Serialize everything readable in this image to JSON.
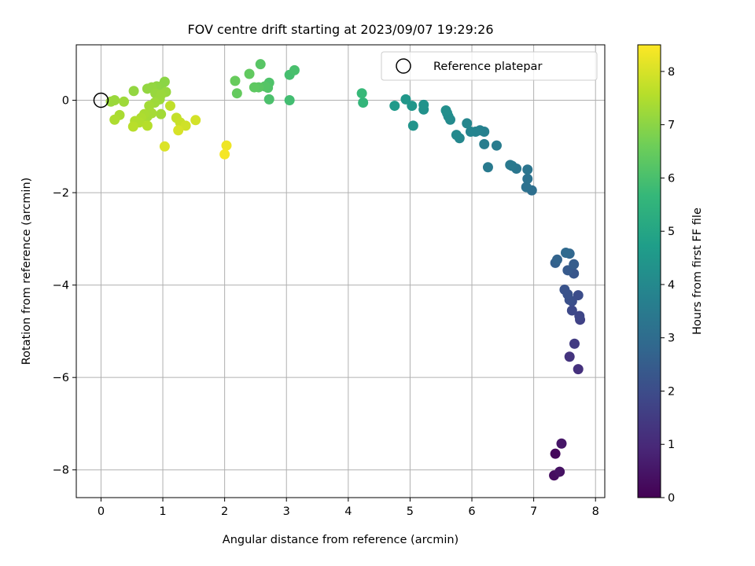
{
  "chart_data": {
    "type": "scatter",
    "title": "FOV centre drift starting at 2023/09/07 19:29:26",
    "xlabel": "Angular distance from reference (arcmin)",
    "ylabel": "Rotation from reference (arcmin)",
    "xlim": [
      -0.4,
      8.15
    ],
    "ylim": [
      -8.6,
      1.2
    ],
    "x_ticks": [
      0,
      1,
      2,
      3,
      4,
      5,
      6,
      7,
      8
    ],
    "x_tick_labels": [
      "0",
      "1",
      "2",
      "3",
      "4",
      "5",
      "6",
      "7",
      "8"
    ],
    "y_ticks": [
      -8,
      -6,
      -4,
      -2,
      0
    ],
    "y_tick_labels": [
      "−8",
      "−6",
      "−4",
      "−2",
      "0"
    ],
    "grid": true,
    "legend": {
      "placement": "top-right",
      "entries": [
        "Reference platepar"
      ]
    },
    "reference_marker": {
      "x": 0,
      "y": 0
    },
    "colorbar": {
      "label": "Hours from first FF file",
      "range": [
        0,
        8.5
      ],
      "ticks": [
        0,
        1,
        2,
        3,
        4,
        5,
        6,
        7,
        8
      ],
      "tick_labels": [
        "0",
        "1",
        "2",
        "3",
        "4",
        "5",
        "6",
        "7",
        "8"
      ],
      "colormap": [
        "#440154",
        "#482878",
        "#3e4989",
        "#31688e",
        "#26828e",
        "#1f9e89",
        "#35b779",
        "#6ece58",
        "#b5de2b",
        "#fde725"
      ]
    },
    "series": [
      {
        "points": [
          [
            7.35,
            -7.65,
            0.2
          ],
          [
            7.33,
            -8.12,
            0.3
          ],
          [
            7.42,
            -8.04,
            0.4
          ],
          [
            7.45,
            -7.43,
            0.5
          ],
          [
            7.72,
            -5.82,
            1.2
          ],
          [
            7.58,
            -5.55,
            1.3
          ],
          [
            7.66,
            -5.27,
            1.5
          ],
          [
            7.75,
            -4.75,
            1.7
          ],
          [
            7.74,
            -4.67,
            1.8
          ],
          [
            7.62,
            -4.55,
            1.9
          ],
          [
            7.72,
            -4.22,
            2.0
          ],
          [
            7.62,
            -4.35,
            2.05
          ],
          [
            7.58,
            -4.32,
            2.1
          ],
          [
            7.55,
            -4.2,
            2.15
          ],
          [
            7.5,
            -4.1,
            2.2
          ],
          [
            7.65,
            -3.75,
            2.3
          ],
          [
            7.55,
            -3.68,
            2.4
          ],
          [
            7.65,
            -3.55,
            2.5
          ],
          [
            7.35,
            -3.52,
            2.6
          ],
          [
            7.38,
            -3.45,
            2.7
          ],
          [
            7.58,
            -3.32,
            2.8
          ],
          [
            7.52,
            -3.3,
            2.9
          ],
          [
            6.97,
            -1.95,
            3.1
          ],
          [
            6.88,
            -1.88,
            3.15
          ],
          [
            6.9,
            -1.7,
            3.2
          ],
          [
            6.9,
            -1.5,
            3.3
          ],
          [
            6.72,
            -1.48,
            3.35
          ],
          [
            6.65,
            -1.42,
            3.4
          ],
          [
            6.62,
            -1.4,
            3.45
          ],
          [
            6.26,
            -1.45,
            3.5
          ],
          [
            6.4,
            -0.98,
            3.55
          ],
          [
            6.2,
            -0.95,
            3.6
          ],
          [
            6.2,
            -0.68,
            3.7
          ],
          [
            6.13,
            -0.65,
            3.75
          ],
          [
            6.06,
            -0.68,
            3.8
          ],
          [
            5.98,
            -0.68,
            3.85
          ],
          [
            5.92,
            -0.5,
            3.9
          ],
          [
            5.8,
            -0.82,
            3.95
          ],
          [
            5.75,
            -0.75,
            4.0
          ],
          [
            5.65,
            -0.42,
            4.05
          ],
          [
            5.62,
            -0.35,
            4.1
          ],
          [
            5.6,
            -0.28,
            4.15
          ],
          [
            5.58,
            -0.22,
            4.2
          ],
          [
            5.22,
            -0.2,
            4.3
          ],
          [
            5.22,
            -0.1,
            4.35
          ],
          [
            5.05,
            -0.55,
            4.4
          ],
          [
            5.03,
            -0.12,
            4.45
          ],
          [
            4.93,
            0.02,
            4.5
          ],
          [
            4.75,
            -0.12,
            4.6
          ],
          [
            4.24,
            -0.05,
            5.6
          ],
          [
            4.22,
            0.15,
            5.7
          ],
          [
            3.05,
            0.0,
            5.9
          ],
          [
            3.05,
            0.55,
            5.95
          ],
          [
            3.13,
            0.65,
            6.0
          ],
          [
            2.72,
            0.02,
            6.05
          ],
          [
            2.72,
            0.38,
            6.1
          ],
          [
            2.7,
            0.27,
            6.15
          ],
          [
            2.65,
            0.3,
            6.2
          ],
          [
            2.58,
            0.78,
            6.25
          ],
          [
            2.55,
            0.28,
            6.3
          ],
          [
            2.48,
            0.28,
            6.35
          ],
          [
            2.4,
            0.57,
            6.4
          ],
          [
            2.2,
            0.15,
            6.45
          ],
          [
            2.17,
            0.42,
            6.5
          ],
          [
            1.03,
            0.4,
            7.0
          ],
          [
            0.97,
            0.3,
            7.0
          ],
          [
            0.9,
            0.3,
            7.05
          ],
          [
            0.82,
            0.28,
            7.1
          ],
          [
            0.75,
            0.25,
            7.1
          ],
          [
            0.53,
            0.2,
            7.1
          ],
          [
            0.88,
            0.15,
            7.15
          ],
          [
            1.05,
            0.18,
            7.15
          ],
          [
            0.97,
            0.12,
            7.2
          ],
          [
            0.95,
            0.02,
            7.2
          ],
          [
            0.22,
            0.0,
            7.2
          ],
          [
            0.16,
            -0.03,
            7.2
          ],
          [
            0.37,
            -0.03,
            7.25
          ],
          [
            0.87,
            -0.05,
            7.25
          ],
          [
            0.78,
            -0.12,
            7.3
          ],
          [
            0.97,
            -0.3,
            7.3
          ],
          [
            0.82,
            -0.28,
            7.35
          ],
          [
            0.75,
            -0.35,
            7.35
          ],
          [
            0.7,
            -0.3,
            7.4
          ],
          [
            0.3,
            -0.32,
            7.4
          ],
          [
            0.65,
            -0.38,
            7.45
          ],
          [
            0.22,
            -0.42,
            7.45
          ],
          [
            0.55,
            -0.45,
            7.5
          ],
          [
            0.62,
            -0.48,
            7.5
          ],
          [
            0.75,
            -0.55,
            7.55
          ],
          [
            0.52,
            -0.57,
            7.6
          ],
          [
            1.12,
            -0.12,
            7.7
          ],
          [
            1.22,
            -0.38,
            7.75
          ],
          [
            1.28,
            -0.48,
            7.8
          ],
          [
            1.37,
            -0.55,
            7.9
          ],
          [
            1.53,
            -0.43,
            7.95
          ],
          [
            1.25,
            -0.65,
            8.0
          ],
          [
            1.03,
            -1.0,
            8.05
          ],
          [
            2.03,
            -0.98,
            8.3
          ],
          [
            2.0,
            -1.17,
            8.4
          ]
        ]
      }
    ]
  }
}
